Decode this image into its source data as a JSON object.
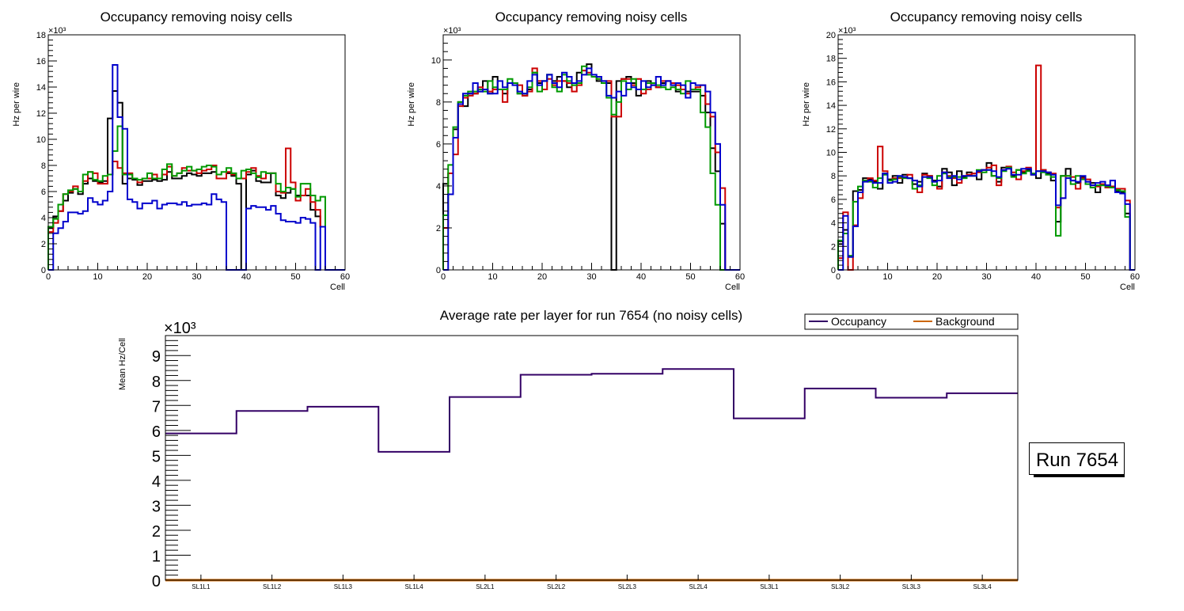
{
  "colors": {
    "black": "#000000",
    "red": "#cc0000",
    "green": "#009900",
    "blue": "#0000cc",
    "occupancy": "#330066",
    "background": "#cc6600"
  },
  "chart_data": [
    {
      "type": "histogram",
      "title": "Occupancy removing noisy cells",
      "xlabel": "Cell",
      "ylabel": "Hz per wire",
      "exponent": "×10³",
      "xlim": [
        0,
        60
      ],
      "ylim": [
        0,
        18
      ],
      "xticks": [
        0,
        10,
        20,
        30,
        40,
        50,
        60
      ],
      "yticks": [
        0,
        2,
        4,
        6,
        8,
        10,
        12,
        14,
        16,
        18
      ],
      "series": [
        {
          "name": "black",
          "color": "#000000",
          "values": [
            3.2,
            4.1,
            4.5,
            5.3,
            5.9,
            6.2,
            5.8,
            6.6,
            7.0,
            6.8,
            6.7,
            6.8,
            11.6,
            13.7,
            12.8,
            6.6,
            7.0,
            6.9,
            6.5,
            6.8,
            6.8,
            6.9,
            6.8,
            6.9,
            7.5,
            7.0,
            7.0,
            7.2,
            7.4,
            7.3,
            7.2,
            7.4,
            7.4,
            7.5,
            7.0,
            7.0,
            7.4,
            7.2,
            6.6,
            0,
            7.3,
            7.6,
            6.8,
            6.7,
            6.7,
            7.4,
            5.7,
            5.5,
            5.9,
            6.2,
            5.7,
            5.7,
            5.7,
            4.6,
            4.1,
            3.3,
            0,
            0,
            0,
            0
          ]
        },
        {
          "name": "red",
          "color": "#cc0000",
          "values": [
            2.9,
            3.6,
            4.5,
            5.8,
            6.0,
            6.4,
            6.0,
            6.8,
            7.5,
            7.4,
            6.6,
            6.6,
            7.3,
            8.3,
            7.8,
            7.4,
            7.4,
            7.0,
            6.7,
            7.0,
            7.0,
            7.3,
            7.0,
            7.3,
            7.9,
            7.2,
            7.4,
            7.8,
            7.6,
            7.6,
            7.4,
            7.6,
            7.7,
            8.0,
            7.0,
            7.0,
            7.5,
            7.3,
            7.0,
            7.0,
            7.5,
            7.8,
            7.2,
            7.0,
            7.4,
            7.4,
            6.0,
            5.9,
            9.3,
            6.7,
            5.3,
            5.7,
            6.2,
            5.2,
            4.6,
            3.3,
            0,
            0,
            0,
            0
          ]
        },
        {
          "name": "green",
          "color": "#009900",
          "values": [
            3.3,
            3.9,
            5.0,
            5.8,
            6.1,
            6.2,
            6.0,
            7.3,
            7.5,
            6.9,
            6.8,
            7.2,
            7.3,
            9.1,
            11.0,
            7.3,
            7.3,
            7.0,
            6.9,
            7.0,
            7.4,
            7.0,
            7.0,
            7.7,
            8.1,
            7.2,
            7.4,
            7.6,
            7.9,
            7.6,
            7.7,
            7.9,
            8.0,
            7.9,
            7.3,
            7.5,
            7.8,
            7.4,
            7.0,
            7.6,
            7.7,
            7.4,
            7.1,
            7.5,
            7.4,
            7.4,
            6.6,
            6.0,
            6.3,
            6.2,
            5.6,
            6.6,
            6.6,
            5.7,
            5.3,
            5.6,
            0,
            0,
            0,
            0
          ]
        },
        {
          "name": "blue",
          "color": "#0000cc",
          "values": [
            0,
            2.8,
            3.2,
            3.7,
            4.4,
            4.4,
            4.3,
            4.5,
            5.5,
            5.2,
            5.0,
            5.3,
            6.0,
            15.7,
            11.7,
            10.8,
            5.4,
            5.2,
            4.7,
            5.1,
            5.1,
            5.3,
            4.7,
            5.0,
            5.1,
            5.1,
            5.0,
            5.2,
            4.9,
            5.0,
            5.0,
            5.1,
            5.0,
            5.8,
            5.4,
            5.2,
            0,
            0,
            0,
            0,
            4.7,
            4.9,
            4.8,
            4.8,
            4.6,
            4.9,
            4.3,
            3.8,
            3.7,
            3.7,
            3.6,
            4.0,
            3.9,
            3.6,
            0,
            3.3,
            0,
            0,
            0,
            0
          ]
        }
      ]
    },
    {
      "type": "histogram",
      "title": "Occupancy removing noisy cells",
      "xlabel": "Cell",
      "ylabel": "Hz per wire",
      "exponent": "×10³",
      "xlim": [
        0,
        60
      ],
      "ylim": [
        0,
        11.2
      ],
      "xticks": [
        0,
        10,
        20,
        30,
        40,
        50,
        60
      ],
      "yticks": [
        0,
        2,
        4,
        6,
        8,
        10
      ],
      "series": [
        {
          "name": "black",
          "color": "#000000",
          "values": [
            4.1,
            4.6,
            6.7,
            8.0,
            7.8,
            8.4,
            8.4,
            8.5,
            9.0,
            8.4,
            9.2,
            8.6,
            8.4,
            8.9,
            8.9,
            8.4,
            8.3,
            8.6,
            9.4,
            8.9,
            9.0,
            9.3,
            9.0,
            9.2,
            9.0,
            8.7,
            8.9,
            9.4,
            9.5,
            9.8,
            9.2,
            9.0,
            9.0,
            8.9,
            0,
            9.0,
            9.1,
            9.2,
            8.9,
            8.3,
            8.6,
            9.0,
            8.8,
            8.7,
            8.9,
            9.0,
            8.9,
            8.5,
            8.6,
            8.5,
            8.5,
            8.5,
            8.3,
            7.5,
            5.8,
            4.7,
            2.2,
            0,
            0,
            0
          ]
        },
        {
          "name": "red",
          "color": "#cc0000",
          "values": [
            2.0,
            4.6,
            5.5,
            7.8,
            8.2,
            8.3,
            8.4,
            8.7,
            8.6,
            8.5,
            8.6,
            8.6,
            8.0,
            8.9,
            8.9,
            8.8,
            8.3,
            8.5,
            9.6,
            9.0,
            8.6,
            9.1,
            8.8,
            9.0,
            9.0,
            8.9,
            8.5,
            8.8,
            9.5,
            9.4,
            9.2,
            9.1,
            8.9,
            9.0,
            7.3,
            7.3,
            9.1,
            9.1,
            8.8,
            9.1,
            8.4,
            8.6,
            8.9,
            8.7,
            9.0,
            9.0,
            8.9,
            8.8,
            8.6,
            8.4,
            8.6,
            8.7,
            8.8,
            7.9,
            7.3,
            5.6,
            3.9,
            0,
            0,
            0
          ]
        },
        {
          "name": "green",
          "color": "#009900",
          "values": [
            2.6,
            5.0,
            6.8,
            8.0,
            8.3,
            8.5,
            8.5,
            8.6,
            8.5,
            9.0,
            8.7,
            8.6,
            8.6,
            9.1,
            8.9,
            8.4,
            8.4,
            8.7,
            9.4,
            8.5,
            9.0,
            9.3,
            8.7,
            8.5,
            9.3,
            9.0,
            8.8,
            8.9,
            9.7,
            9.3,
            9.2,
            9.1,
            8.9,
            8.2,
            7.4,
            8.0,
            9.0,
            8.6,
            9.1,
            8.6,
            8.6,
            8.9,
            8.9,
            8.8,
            8.7,
            8.6,
            8.7,
            8.6,
            8.4,
            9.0,
            8.6,
            8.6,
            7.5,
            6.8,
            4.6,
            3.1,
            0,
            0,
            0,
            0
          ]
        },
        {
          "name": "blue",
          "color": "#0000cc",
          "values": [
            0,
            3.6,
            6.3,
            7.9,
            8.4,
            8.4,
            8.9,
            8.5,
            8.6,
            8.4,
            8.4,
            9.0,
            8.7,
            8.9,
            8.8,
            8.5,
            8.4,
            9.0,
            9.3,
            8.8,
            9.0,
            9.3,
            8.9,
            8.7,
            9.4,
            9.2,
            8.9,
            9.0,
            9.3,
            9.6,
            9.3,
            9.2,
            9.0,
            8.3,
            8.2,
            8.5,
            8.3,
            8.9,
            8.7,
            8.6,
            9.0,
            8.7,
            8.8,
            9.2,
            8.8,
            9.0,
            8.8,
            8.9,
            8.8,
            8.2,
            8.9,
            8.8,
            8.8,
            8.5,
            7.5,
            6.0,
            3.1,
            0,
            0,
            0
          ]
        }
      ]
    },
    {
      "type": "histogram",
      "title": "Occupancy removing noisy cells",
      "xlabel": "Cell",
      "ylabel": "Hz per wire",
      "exponent": "×10³",
      "xlim": [
        0,
        60
      ],
      "ylim": [
        0,
        20
      ],
      "xticks": [
        0,
        10,
        20,
        30,
        40,
        50,
        60
      ],
      "yticks": [
        0,
        2,
        4,
        6,
        8,
        10,
        12,
        14,
        16,
        18,
        20
      ],
      "series": [
        {
          "name": "black",
          "color": "#000000",
          "values": [
            2.2,
            3.4,
            1.1,
            6.7,
            6.8,
            7.8,
            7.7,
            7.5,
            6.9,
            8.2,
            7.7,
            8.0,
            7.4,
            8.1,
            7.8,
            7.3,
            7.5,
            8.2,
            8.0,
            7.6,
            7.1,
            8.6,
            8.3,
            7.2,
            8.4,
            7.9,
            8.3,
            8.2,
            7.7,
            8.5,
            9.1,
            8.0,
            7.5,
            8.7,
            8.7,
            8.0,
            8.5,
            8.3,
            8.5,
            8.1,
            7.8,
            8.5,
            8.2,
            7.6,
            4.1,
            8.0,
            8.6,
            7.6,
            7.4,
            7.9,
            7.5,
            7.4,
            6.6,
            7.2,
            7.2,
            7.1,
            6.7,
            6.6,
            4.8,
            0
          ]
        },
        {
          "name": "red",
          "color": "#cc0000",
          "values": [
            1.0,
            4.9,
            0,
            3.8,
            6.1,
            7.6,
            7.8,
            7.6,
            10.5,
            8.4,
            7.6,
            7.8,
            7.8,
            7.9,
            8.1,
            7.6,
            6.6,
            8.1,
            8.0,
            7.5,
            6.9,
            8.3,
            8.0,
            7.8,
            7.4,
            8.0,
            8.1,
            8.2,
            8.3,
            8.5,
            8.7,
            8.9,
            7.2,
            8.5,
            8.8,
            8.3,
            7.7,
            8.4,
            8.7,
            8.2,
            17.4,
            8.5,
            8.3,
            8.2,
            5.3,
            6.1,
            8.0,
            7.9,
            6.9,
            7.8,
            7.7,
            7.2,
            7.1,
            7.3,
            7.0,
            7.1,
            6.9,
            6.9,
            5.9,
            0
          ]
        },
        {
          "name": "green",
          "color": "#009900",
          "values": [
            2.5,
            3.1,
            1.2,
            5.8,
            7.1,
            7.6,
            7.5,
            7.0,
            7.8,
            8.1,
            7.6,
            7.7,
            7.9,
            7.8,
            7.8,
            6.9,
            7.2,
            7.9,
            7.8,
            7.2,
            8.0,
            8.2,
            7.9,
            7.9,
            7.9,
            7.8,
            8.0,
            8.0,
            8.5,
            8.3,
            8.5,
            8.0,
            7.8,
            8.4,
            8.7,
            7.9,
            8.5,
            8.2,
            8.4,
            8.2,
            8.4,
            8.3,
            8.1,
            7.9,
            2.9,
            8.0,
            8.0,
            7.3,
            8.0,
            7.7,
            7.3,
            7.0,
            7.2,
            7.2,
            7.1,
            7.0,
            6.8,
            6.7,
            4.5,
            0
          ]
        },
        {
          "name": "blue",
          "color": "#0000cc",
          "values": [
            0,
            4.6,
            1.1,
            3.7,
            6.6,
            7.5,
            7.6,
            7.4,
            7.4,
            8.2,
            7.4,
            7.5,
            8.0,
            7.9,
            7.8,
            7.6,
            7.1,
            7.9,
            7.9,
            7.5,
            7.6,
            8.3,
            7.8,
            8.0,
            7.7,
            8.0,
            8.0,
            8.0,
            8.4,
            8.5,
            8.5,
            8.4,
            7.9,
            8.5,
            8.6,
            8.1,
            8.1,
            8.6,
            8.6,
            8.1,
            8.4,
            8.4,
            8.3,
            8.1,
            5.5,
            6.1,
            7.8,
            7.6,
            7.5,
            8.0,
            7.5,
            7.2,
            7.4,
            7.5,
            7.2,
            7.6,
            6.6,
            6.5,
            5.6,
            0
          ]
        }
      ]
    },
    {
      "type": "histogram",
      "title": "Average rate per layer for run 7654 (no noisy cells)",
      "xlabel": "",
      "ylabel": "Mean Hz/Cell",
      "exponent": "×10³",
      "ylim": [
        0,
        9.8
      ],
      "yticks": [
        0,
        1,
        2,
        3,
        4,
        5,
        6,
        7,
        8,
        9
      ],
      "categories": [
        "SL1L1",
        "SL1L2",
        "SL1L3",
        "SL1L4",
        "SL2L1",
        "SL2L2",
        "SL2L3",
        "SL2L4",
        "SL3L1",
        "SL3L2",
        "SL3L3",
        "SL3L4"
      ],
      "legend": {
        "position": "top-right",
        "entries": [
          {
            "label": "Occupancy",
            "color": "#330066"
          },
          {
            "label": "Background",
            "color": "#cc6600"
          }
        ]
      },
      "series": [
        {
          "name": "Occupancy",
          "color": "#330066",
          "values": [
            5.88,
            6.78,
            6.95,
            5.14,
            7.34,
            8.23,
            8.27,
            8.46,
            6.48,
            7.68,
            7.31,
            7.49
          ]
        },
        {
          "name": "Background",
          "color": "#cc6600",
          "values": [
            0,
            0,
            0,
            0,
            0,
            0,
            0,
            0,
            0,
            0,
            0,
            0
          ]
        }
      ]
    }
  ],
  "run_label": "Run 7654"
}
